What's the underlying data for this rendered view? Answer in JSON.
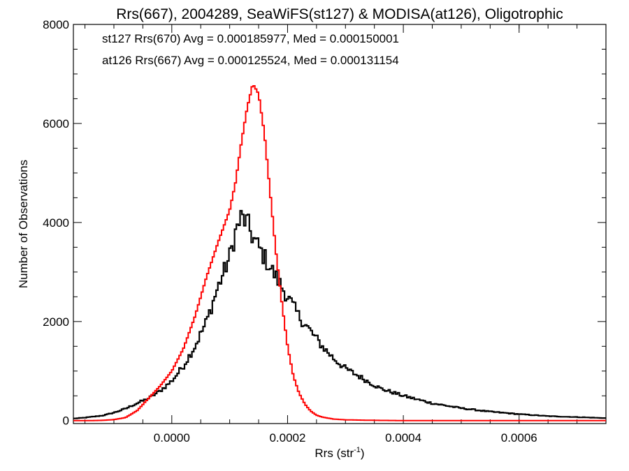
{
  "chart_data": {
    "type": "line",
    "title": "Rrs(667), 2004289, SeaWiFS(st127) & MODISA(at126), Oligotrophic",
    "xlabel_main": "Rrs (str",
    "xlabel_sup": "-1",
    "xlabel_close": ")",
    "ylabel": "Number of Observations",
    "xlim": [
      -0.00017,
      0.00075
    ],
    "ylim": [
      -60,
      8000
    ],
    "xticks": [
      {
        "value": 0.0,
        "label": "0.0000"
      },
      {
        "value": 0.0002,
        "label": "0.0002"
      },
      {
        "value": 0.0004,
        "label": "0.0004"
      },
      {
        "value": 0.0006,
        "label": "0.0006"
      }
    ],
    "yticks": [
      {
        "value": 0,
        "label": "0"
      },
      {
        "value": 2000,
        "label": "2000"
      },
      {
        "value": 4000,
        "label": "4000"
      },
      {
        "value": 6000,
        "label": "6000"
      },
      {
        "value": 8000,
        "label": "8000"
      }
    ],
    "grid": false,
    "legend_position": "top-left",
    "series": [
      {
        "name": "st127 Rrs(670) Avg = 0.000185977, Med = 0.000150001",
        "color": "#000000",
        "style": "step-histogram (noisy)",
        "x": [
          -0.00017,
          -0.00015,
          -0.00012,
          -0.0001,
          -8e-05,
          -6e-05,
          -4e-05,
          -2e-05,
          0.0,
          2e-05,
          4e-05,
          6e-05,
          8e-05,
          0.0001,
          0.00011,
          0.00012,
          0.00013,
          0.00014,
          0.00015,
          0.00016,
          0.00017,
          0.00018,
          0.0002,
          0.00022,
          0.00024,
          0.00026,
          0.00028,
          0.0003,
          0.00033,
          0.00036,
          0.0004,
          0.00045,
          0.0005,
          0.00055,
          0.0006,
          0.00065,
          0.0007,
          0.00075
        ],
        "y": [
          40,
          60,
          100,
          160,
          240,
          350,
          450,
          600,
          800,
          1100,
          1500,
          2000,
          2700,
          3300,
          3800,
          4100,
          4000,
          3700,
          3500,
          3300,
          3100,
          2900,
          2500,
          2100,
          1800,
          1500,
          1250,
          1050,
          850,
          650,
          500,
          350,
          250,
          180,
          130,
          90,
          70,
          50
        ]
      },
      {
        "name": "at126 Rrs(667) Avg = 0.000125524, Med = 0.000131154",
        "color": "#ff0000",
        "style": "step-histogram",
        "x": [
          -0.00017,
          -0.00014,
          -0.00012,
          -0.0001,
          -8e-05,
          -6e-05,
          -4e-05,
          -2e-05,
          0.0,
          2e-05,
          4e-05,
          6e-05,
          8e-05,
          0.0001,
          0.00011,
          0.00012,
          0.00013,
          0.00014,
          0.00015,
          0.00016,
          0.00017,
          0.00018,
          0.00019,
          0.0002,
          0.00021,
          0.00022,
          0.00023,
          0.00024,
          0.00025,
          0.00026,
          0.00028,
          0.0003,
          0.00035,
          0.0004,
          0.0005,
          0.00075
        ],
        "y": [
          0,
          0,
          5,
          20,
          60,
          200,
          450,
          700,
          1000,
          1450,
          2100,
          2900,
          3600,
          4250,
          4800,
          5600,
          6300,
          6800,
          6600,
          5800,
          4600,
          3400,
          2400,
          1500,
          900,
          550,
          330,
          190,
          110,
          70,
          30,
          15,
          5,
          0,
          0,
          0
        ]
      }
    ]
  }
}
